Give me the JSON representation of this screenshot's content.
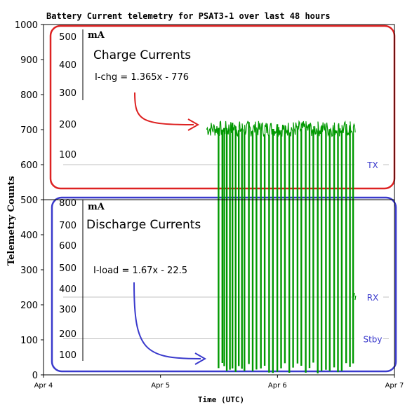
{
  "chart_data": {
    "type": "line",
    "title": "Battery Current telemetry for PSAT3-1 over last 48 hours",
    "xlabel": "Time (UTC)",
    "ylabel": "Telemetry Counts",
    "xlim": [
      "2025-04-04T00:00",
      "2025-04-07T00:00"
    ],
    "ylim": [
      0,
      1000
    ],
    "x_ticks": [
      "Apr 4",
      "Apr 5",
      "Apr 6",
      "Apr 7"
    ],
    "y_ticks": [
      0,
      100,
      200,
      300,
      400,
      500,
      600,
      700,
      800,
      900,
      1000
    ],
    "grid": true,
    "series": [
      {
        "name": "",
        "color": "#009900",
        "x_start": "2025-04-05T09:30",
        "x_end": "2025-04-06T16:00",
        "baseline_value": 700,
        "high_range": [
          690,
          740
        ],
        "low_range": [
          5,
          110
        ],
        "low_dip_dates": [
          "2025-04-05T11:50",
          "2025-04-05T12:40",
          "2025-04-05T13:00",
          "2025-04-05T13:30",
          "2025-04-05T14:10",
          "2025-04-05T14:40",
          "2025-04-05T15:20",
          "2025-04-05T16:00",
          "2025-04-05T16:40",
          "2025-04-05T17:10",
          "2025-04-05T18:00",
          "2025-04-05T18:50",
          "2025-04-05T19:40",
          "2025-04-05T20:30",
          "2025-04-05T21:20",
          "2025-04-05T22:10",
          "2025-04-05T23:00",
          "2025-04-05T23:50",
          "2025-04-06T00:40",
          "2025-04-06T01:30",
          "2025-04-06T02:20",
          "2025-04-06T03:10",
          "2025-04-06T04:00",
          "2025-04-06T04:50",
          "2025-04-06T05:40",
          "2025-04-06T06:30",
          "2025-04-06T07:20",
          "2025-04-06T08:10",
          "2025-04-06T09:00",
          "2025-04-06T09:50",
          "2025-04-06T10:40",
          "2025-04-06T11:30",
          "2025-04-06T12:20",
          "2025-04-06T13:10",
          "2025-04-06T14:00",
          "2025-04-06T14:50",
          "2025-04-06T15:30"
        ]
      }
    ],
    "reference_lines": [
      {
        "label": "TX",
        "value": 600
      },
      {
        "label": "RX",
        "value": 222
      },
      {
        "label": "Stby",
        "value": 103
      }
    ],
    "upper_panel": {
      "title": "Charge Currents",
      "unit": "mA",
      "formula": "I-chg = 1.365x - 776",
      "scale_ticks": [
        "500",
        "400",
        "300",
        "200",
        "100"
      ],
      "color": "#dd2222"
    },
    "lower_panel": {
      "title": "Discharge Currents",
      "unit": "mA",
      "formula": "I-load = 1.67x - 22.5",
      "scale_ticks": [
        "800",
        "700",
        "600",
        "500",
        "400",
        "300",
        "200",
        "100"
      ],
      "color": "#3a3acc"
    }
  }
}
